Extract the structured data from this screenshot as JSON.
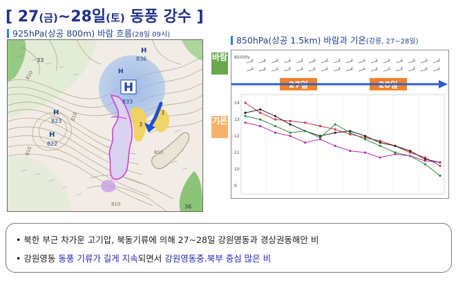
{
  "title": {
    "bracket_open": "[",
    "d1": "27",
    "w1": "(금)",
    "sep": "~",
    "d2": "28일",
    "w2": "(토)",
    "rest": "동풍 강수",
    "bracket_close": "]"
  },
  "left_caption": {
    "main": "925hPa(상공 800m) 바람 흐름",
    "time": "(28일 09시)"
  },
  "right_caption": {
    "main": "850hPa(상공 1.5km) 바람과 기온",
    "detail": "(강릉, 27~28일)"
  },
  "map": {
    "labels": [
      {
        "id": "h-north",
        "text": "H"
      },
      {
        "id": "v-north",
        "text": "836"
      },
      {
        "id": "h-center",
        "text": "H"
      },
      {
        "id": "v-center",
        "text": "833"
      },
      {
        "id": "h-west1",
        "text": "H"
      },
      {
        "id": "v-west1",
        "text": "823"
      },
      {
        "id": "h-west2",
        "text": "H"
      },
      {
        "id": "v-west2",
        "text": "822"
      },
      {
        "id": "c1",
        "text": "810"
      },
      {
        "id": "c2",
        "text": "810"
      },
      {
        "id": "c3",
        "text": "810"
      },
      {
        "id": "c4",
        "text": "810"
      },
      {
        "id": "c5",
        "text": "810"
      },
      {
        "id": "n1",
        "text": "3"
      },
      {
        "id": "n2",
        "text": "3"
      },
      {
        "id": "n3",
        "text": "33"
      },
      {
        "id": "n4",
        "text": "36"
      }
    ]
  },
  "panel": {
    "wind_tag": "바람",
    "temp_tag": "기온",
    "day1": "27일",
    "day2": "28일",
    "wind_header": "850hPa",
    "y_ticks": [
      "14",
      "13",
      "12",
      "11",
      "10",
      "9"
    ],
    "colors": {
      "wind_tag": "#6aa84f",
      "temp_tag": "#f6b26b",
      "day_band": "#f4822a",
      "arrow": "#2f5fc8"
    }
  },
  "chart_data": {
    "type": "line",
    "ylim": [
      8.5,
      14.5
    ],
    "series": [
      {
        "color": "#cc3344",
        "values": [
          14.0,
          13.4,
          13.0,
          12.9,
          12.8,
          12.6,
          12.4,
          12.1,
          11.9,
          11.7,
          11.4,
          11.0,
          10.7,
          10.2
        ]
      },
      {
        "color": "#222222",
        "values": [
          13.4,
          13.6,
          13.2,
          12.7,
          12.3,
          12.0,
          12.2,
          12.3,
          12.0,
          11.6,
          11.4,
          11.1,
          10.6,
          10.4
        ]
      },
      {
        "color": "#2e8b3a",
        "values": [
          13.2,
          13.0,
          12.6,
          12.2,
          12.3,
          11.9,
          12.7,
          12.2,
          11.8,
          11.4,
          11.0,
          10.8,
          10.3,
          9.6
        ]
      },
      {
        "color": "#b030b0",
        "values": [
          12.8,
          12.6,
          12.2,
          12.0,
          11.6,
          11.8,
          11.4,
          11.1,
          11.0,
          10.7,
          10.9,
          10.8,
          10.5,
          10.4
        ]
      }
    ]
  },
  "notes": [
    {
      "bullet": "•",
      "text": "북한 부근 차가운 고기압, 북동기류에 의해 27~28일 강원영동과 경상권동해안 비"
    },
    {
      "bullet": "•",
      "p1": "강원영동 ",
      "p2": "동풍 기류가 길게 지속",
      "p3": "되면서 ",
      "p4": "강원영동중.북부 중심 많은 비"
    }
  ]
}
